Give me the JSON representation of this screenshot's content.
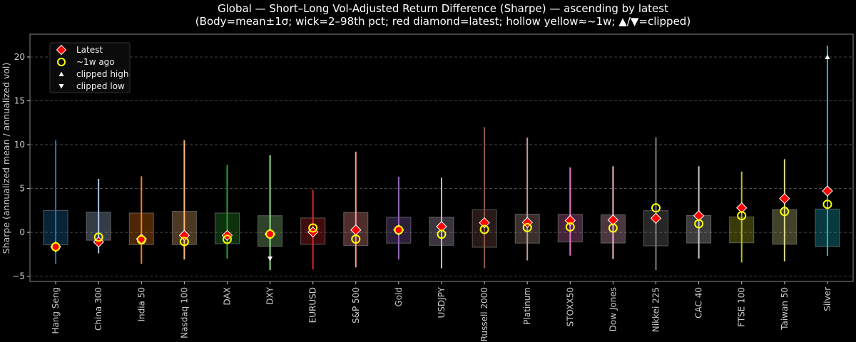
{
  "chart_data": {
    "type": "box-range",
    "title": "Global — Short–Long Vol-Adjusted Return Difference (Sharpe) — ascending by latest",
    "subtitle": "(Body=mean±1σ; wick=2–98th pct; red diamond=latest; hollow yellow≈~1w; ▲/▼=clipped)",
    "xlabel": "",
    "ylabel": "Sharpe (annualized mean / annualized vol)",
    "ylim": [
      -5.6,
      22.6
    ],
    "yticks": [
      -5,
      0,
      5,
      10,
      15,
      20
    ],
    "grid": "horizontal dashed",
    "legend_position": "top-left",
    "legend": [
      {
        "label": "Latest",
        "marker": "red-diamond"
      },
      {
        "label": "~1w ago",
        "marker": "hollow-yellow-circle"
      },
      {
        "label": "clipped high",
        "marker": "white-triangle-up"
      },
      {
        "label": "clipped low",
        "marker": "white-triangle-down"
      }
    ],
    "colors": {
      "latest": "#ff0000",
      "week_ago": "#ffff00",
      "clipped": "#ffffff",
      "grid": "#555555"
    },
    "categories": [
      "Hang Seng",
      "China 300",
      "India 50",
      "Nasdaq 100",
      "DAX",
      "DXY",
      "EURUSD",
      "S&P 500",
      "Gold",
      "USDJPY",
      "Russell 2000",
      "Platinum",
      "STOXX50",
      "Dow Jones",
      "Nikkei 225",
      "CAC 40",
      "FTSE 100",
      "Taiwan 50",
      "Silver"
    ],
    "series_colors": [
      "#1f77b4",
      "#aec7e8",
      "#ff7f0e",
      "#ffbb78",
      "#2ca02c",
      "#98df8a",
      "#d62728",
      "#ff9896",
      "#9467bd",
      "#c5b0d5",
      "#8c564b",
      "#c49c94",
      "#e377c2",
      "#f7b6d2",
      "#7f7f7f",
      "#c7c7c7",
      "#bcbd22",
      "#dbdb8d",
      "#17becf"
    ],
    "body_high": [
      2.5,
      2.3,
      2.2,
      2.4,
      2.2,
      1.9,
      1.64,
      2.27,
      1.72,
      1.72,
      2.57,
      2.08,
      2.05,
      2.0,
      2.47,
      1.92,
      1.76,
      2.6,
      2.66
    ],
    "body_low": [
      -1.4,
      -0.9,
      -1.4,
      -1.4,
      -1.3,
      -1.6,
      -1.37,
      -1.5,
      -1.23,
      -1.48,
      -1.7,
      -1.23,
      -1.1,
      -1.22,
      -1.54,
      -1.22,
      -1.19,
      -1.36,
      -1.63
    ],
    "wick_high": [
      10.5,
      6.1,
      6.4,
      10.5,
      7.7,
      8.8,
      4.86,
      9.2,
      6.34,
      6.23,
      12.0,
      10.8,
      7.4,
      7.53,
      10.84,
      7.53,
      6.94,
      8.35,
      21.3
    ],
    "wick_low": [
      -3.6,
      -2.4,
      -3.6,
      -3.1,
      -3.0,
      -4.3,
      -4.23,
      -4.0,
      -3.1,
      -4.1,
      -4.1,
      -3.2,
      -2.65,
      -3.04,
      -4.31,
      -2.98,
      -3.44,
      -3.3,
      -2.68
    ],
    "latest": [
      -1.65,
      -1.1,
      -0.75,
      -0.35,
      -0.35,
      -0.2,
      0.03,
      0.27,
      0.27,
      0.66,
      1.09,
      1.12,
      1.35,
      1.41,
      1.6,
      1.9,
      2.79,
      3.85,
      4.72
    ],
    "week_ago": [
      -1.65,
      -0.55,
      -0.85,
      -1.05,
      -0.8,
      -0.2,
      0.5,
      -0.77,
      0.27,
      -0.22,
      0.33,
      0.55,
      0.62,
      0.49,
      2.79,
      0.98,
      1.9,
      2.38,
      3.2
    ],
    "clipped_high": [
      null,
      null,
      null,
      null,
      null,
      null,
      null,
      null,
      null,
      null,
      null,
      null,
      null,
      null,
      null,
      null,
      null,
      null,
      20
    ],
    "clipped_low": [
      null,
      null,
      null,
      null,
      null,
      -3.0,
      null,
      null,
      null,
      null,
      null,
      null,
      null,
      null,
      null,
      null,
      null,
      null,
      null
    ]
  }
}
